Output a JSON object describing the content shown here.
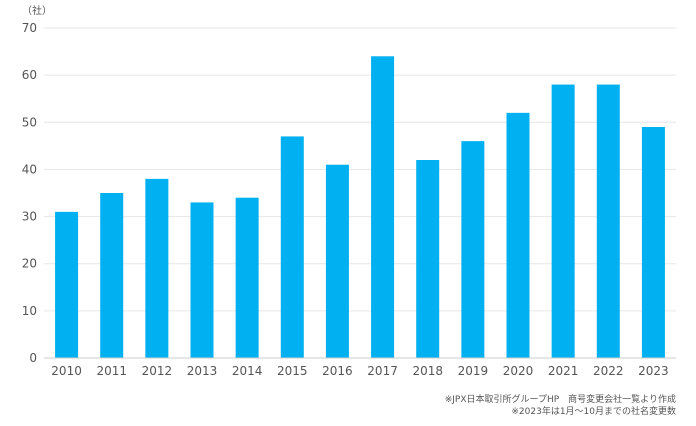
{
  "chart_data": {
    "type": "bar",
    "title": "",
    "xlabel": "",
    "ylabel": "",
    "y_unit_label": "（社）",
    "categories": [
      "2010",
      "2011",
      "2012",
      "2013",
      "2014",
      "2015",
      "2016",
      "2017",
      "2018",
      "2019",
      "2020",
      "2021",
      "2022",
      "2023"
    ],
    "values": [
      31,
      35,
      38,
      33,
      34,
      47,
      41,
      64,
      42,
      46,
      52,
      58,
      58,
      49
    ],
    "ylim": [
      0,
      70
    ],
    "yticks": [
      "0",
      "10",
      "20",
      "30",
      "40",
      "50",
      "60",
      "70"
    ],
    "grid": true,
    "legend": "none",
    "bar_color": "#00b0f0",
    "notes": [
      "※JPX日本取引所グループHP　商号変更会社一覧より作成",
      "※2023年は1月～10月までの社名変更数"
    ]
  }
}
